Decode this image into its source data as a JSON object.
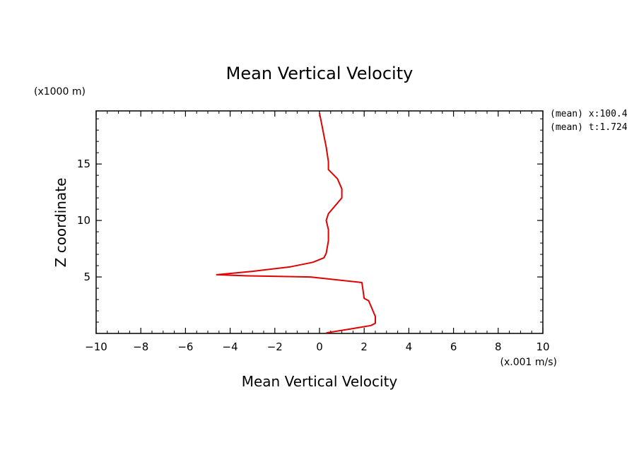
{
  "chart_data": {
    "type": "line",
    "title": "Mean Vertical Velocity",
    "xlabel": "Mean Vertical Velocity",
    "ylabel": "Z coordinate",
    "x_units": "(x.001 m/s)",
    "y_units": "(x1000 m)",
    "xlim": [
      -10,
      10
    ],
    "ylim": [
      0,
      19.7
    ],
    "x_ticks": [
      -10,
      -8,
      -6,
      -4,
      -2,
      0,
      2,
      4,
      6,
      8,
      10
    ],
    "y_ticks": [
      5,
      10,
      15
    ],
    "grid": false,
    "series": [
      {
        "color": "#e00000",
        "points": [
          [
            0.3,
            0.05
          ],
          [
            1.4,
            0.4
          ],
          [
            2.3,
            0.7
          ],
          [
            2.5,
            0.9
          ],
          [
            2.5,
            1.5
          ],
          [
            2.2,
            2.9
          ],
          [
            2.0,
            3.1
          ],
          [
            1.9,
            4.5
          ],
          [
            -0.4,
            5.0
          ],
          [
            -3.2,
            5.1
          ],
          [
            -4.6,
            5.2
          ],
          [
            -3.0,
            5.5
          ],
          [
            -1.3,
            5.9
          ],
          [
            -0.3,
            6.3
          ],
          [
            0.2,
            6.7
          ],
          [
            0.3,
            7.1
          ],
          [
            0.4,
            8.2
          ],
          [
            0.4,
            9.2
          ],
          [
            0.3,
            10.0
          ],
          [
            0.4,
            10.6
          ],
          [
            0.7,
            11.3
          ],
          [
            1.0,
            12.0
          ],
          [
            1.0,
            12.8
          ],
          [
            0.8,
            13.7
          ],
          [
            0.4,
            14.5
          ],
          [
            0.4,
            15.2
          ],
          [
            0.3,
            16.5
          ],
          [
            0.2,
            17.5
          ],
          [
            0.1,
            18.5
          ],
          [
            0.0,
            19.5
          ]
        ]
      }
    ]
  },
  "annotations": {
    "line1": "(mean) x:100.4",
    "line2": "(mean) t:1.724"
  }
}
